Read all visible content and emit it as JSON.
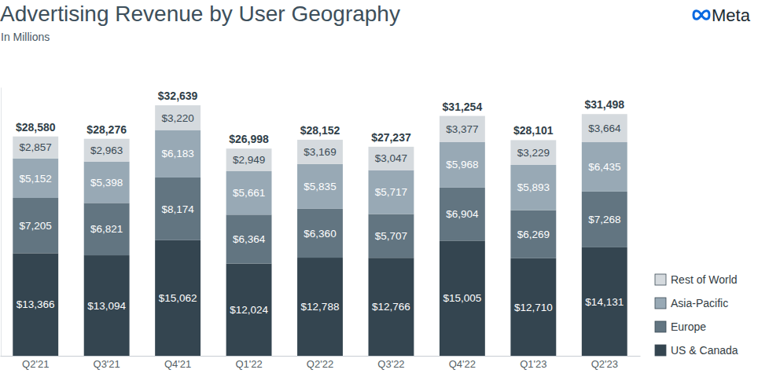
{
  "chart_data": {
    "type": "bar",
    "title": "Advertising Revenue by User Geography",
    "subtitle": "In Millions",
    "annotations": [
      "Meta"
    ],
    "categories": [
      "Q2'21",
      "Q3'21",
      "Q4'21",
      "Q1'22",
      "Q2'22",
      "Q3'22",
      "Q4'22",
      "Q1'23",
      "Q2'23"
    ],
    "series": [
      {
        "name": "US & Canada",
        "color": "#344550",
        "values": [
          13366,
          13094,
          15062,
          12024,
          12788,
          12766,
          15005,
          12710,
          14131
        ],
        "value_labels": [
          "$13,366",
          "$13,094",
          "$15,062",
          "$12,024",
          "$12,788",
          "$12,766",
          "$15,005",
          "$12,710",
          "$14,131"
        ]
      },
      {
        "name": "Europe",
        "color": "#627581",
        "values": [
          7205,
          6821,
          8174,
          6364,
          6360,
          5707,
          6904,
          6269,
          7268
        ],
        "value_labels": [
          "$7,205",
          "$6,821",
          "$8,174",
          "$6,364",
          "$6,360",
          "$5,707",
          "$6,904",
          "$6,269",
          "$7,268"
        ]
      },
      {
        "name": "Asia-Pacific",
        "color": "#98a9b5",
        "values": [
          5152,
          5398,
          6183,
          5661,
          5835,
          5717,
          5968,
          5893,
          6435
        ],
        "value_labels": [
          "$5,152",
          "$5,398",
          "$6,183",
          "$5,661",
          "$5,835",
          "$5,717",
          "$5,968",
          "$5,893",
          "$6,435"
        ]
      },
      {
        "name": "Rest of World",
        "color": "#d5dade",
        "values": [
          2857,
          2963,
          3220,
          2949,
          3169,
          3047,
          3377,
          3229,
          3664
        ],
        "value_labels": [
          "$2,857",
          "$2,963",
          "$3,220",
          "$2,949",
          "$3,169",
          "$3,047",
          "$3,377",
          "$3,229",
          "$3,664"
        ]
      }
    ],
    "totals": [
      28580,
      28276,
      32639,
      26998,
      28152,
      27237,
      31254,
      28101,
      31498
    ],
    "total_labels": [
      "$28,580",
      "$28,276",
      "$32,639",
      "$26,998",
      "$28,152",
      "$27,237",
      "$31,254",
      "$28,101",
      "$31,498"
    ],
    "ylim": [
      0,
      35000
    ],
    "stacked": true,
    "data_labels": true,
    "grid": false,
    "legend": "right",
    "tick_labels": "x"
  }
}
